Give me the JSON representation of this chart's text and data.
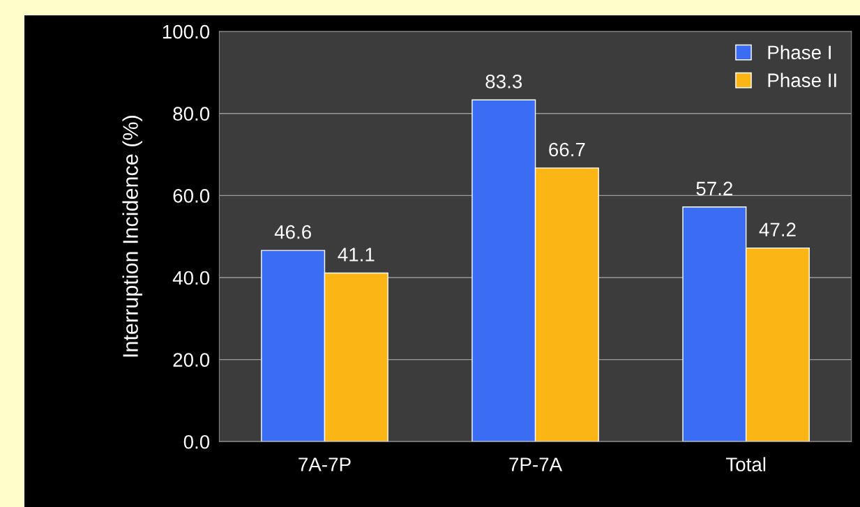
{
  "chart_data": {
    "type": "bar",
    "ylabel": "Interruption Incidence (%)",
    "categories": [
      "7A-7P",
      "7P-7A",
      "Total"
    ],
    "series": [
      {
        "name": "Phase I",
        "color": "#3a6cf4",
        "values": [
          46.6,
          83.3,
          57.2
        ]
      },
      {
        "name": "Phase II",
        "color": "#fbb514",
        "values": [
          41.1,
          66.7,
          47.2
        ]
      }
    ],
    "ylim": [
      0,
      100
    ],
    "yticks": [
      {
        "value": 0,
        "label": "0.0"
      },
      {
        "value": 20,
        "label": "20.0"
      },
      {
        "value": 40,
        "label": "40.0"
      },
      {
        "value": 60,
        "label": "60.0"
      },
      {
        "value": 80,
        "label": "80.0"
      },
      {
        "value": 100,
        "label": "100.0"
      }
    ],
    "grid": "y",
    "legend": "top right",
    "data_labels": true
  }
}
